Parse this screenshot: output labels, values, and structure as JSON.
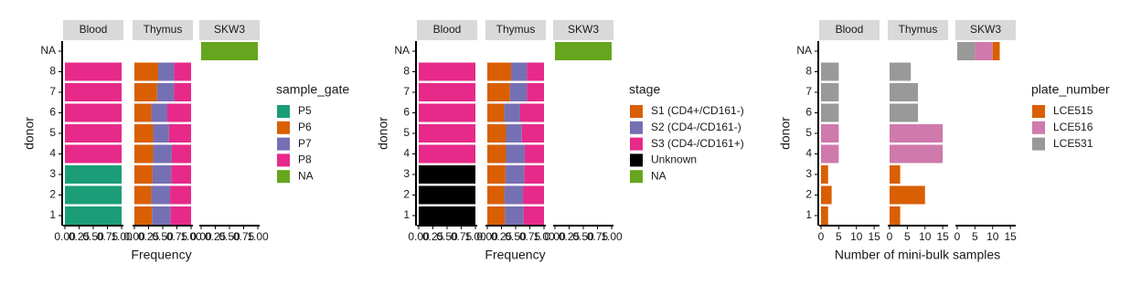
{
  "chart_data": [
    {
      "type": "bar",
      "orientation": "horizontal",
      "stack_order": "forward",
      "facets": [
        "Blood",
        "Thymus",
        "SKW3"
      ],
      "categories": [
        "1",
        "2",
        "3",
        "4",
        "5",
        "6",
        "7",
        "8",
        "NA"
      ],
      "x_label": "Frequency",
      "y_label": "donor",
      "legend_title": "sample_gate",
      "xlim": [
        0,
        1
      ],
      "xticks": [
        {
          "value": 0,
          "label": "0.00"
        },
        {
          "value": 0.25,
          "label": "0.25"
        },
        {
          "value": 0.5,
          "label": "0.50"
        },
        {
          "value": 0.75,
          "label": "0.75"
        },
        {
          "value": 1,
          "label": "1.00"
        }
      ],
      "series": [
        {
          "name": "P5",
          "color": "#1b9e77",
          "values": [
            [
              1,
              1,
              1,
              null,
              null,
              null,
              null,
              null,
              null
            ],
            [
              null,
              null,
              null,
              null,
              null,
              null,
              null,
              null,
              null
            ],
            [
              null,
              null,
              null,
              null,
              null,
              null,
              null,
              null,
              null
            ]
          ]
        },
        {
          "name": "P6",
          "color": "#d95f02",
          "values": [
            [
              null,
              null,
              null,
              null,
              null,
              null,
              null,
              null,
              null
            ],
            [
              0.31,
              0.3,
              0.32,
              0.33,
              0.33,
              0.3,
              0.4,
              0.42,
              null
            ],
            [
              null,
              null,
              null,
              null,
              null,
              null,
              null,
              null,
              null
            ]
          ]
        },
        {
          "name": "P7",
          "color": "#7570b3",
          "values": [
            [
              null,
              null,
              null,
              null,
              null,
              null,
              null,
              null,
              null
            ],
            [
              0.33,
              0.33,
              0.33,
              0.33,
              0.28,
              0.28,
              0.3,
              0.28,
              null
            ],
            [
              null,
              null,
              null,
              null,
              null,
              null,
              null,
              null,
              null
            ]
          ]
        },
        {
          "name": "P8",
          "color": "#e7298a",
          "values": [
            [
              null,
              null,
              null,
              1,
              1,
              1,
              1,
              1,
              null
            ],
            [
              0.36,
              0.37,
              0.35,
              0.34,
              0.39,
              0.42,
              0.3,
              0.3,
              null
            ],
            [
              null,
              null,
              null,
              null,
              null,
              null,
              null,
              null,
              null
            ]
          ]
        },
        {
          "name": "NA",
          "color": "#66a61e",
          "values": [
            [
              null,
              null,
              null,
              null,
              null,
              null,
              null,
              null,
              null
            ],
            [
              null,
              null,
              null,
              null,
              null,
              null,
              null,
              null,
              null
            ],
            [
              null,
              null,
              null,
              null,
              null,
              null,
              null,
              null,
              1
            ]
          ]
        }
      ]
    },
    {
      "type": "bar",
      "orientation": "horizontal",
      "stack_order": "forward",
      "facets": [
        "Blood",
        "Thymus",
        "SKW3"
      ],
      "categories": [
        "1",
        "2",
        "3",
        "4",
        "5",
        "6",
        "7",
        "8",
        "NA"
      ],
      "x_label": "Frequency",
      "y_label": "donor",
      "legend_title": "stage",
      "xlim": [
        0,
        1
      ],
      "xticks": [
        {
          "value": 0,
          "label": "0.00"
        },
        {
          "value": 0.25,
          "label": "0.25"
        },
        {
          "value": 0.5,
          "label": "0.50"
        },
        {
          "value": 0.75,
          "label": "0.75"
        },
        {
          "value": 1,
          "label": "1.00"
        }
      ],
      "series": [
        {
          "name": "S1 (CD4+/CD161-)",
          "color": "#d95f02",
          "values": [
            [
              null,
              null,
              null,
              null,
              null,
              null,
              null,
              null,
              null
            ],
            [
              0.31,
              0.3,
              0.32,
              0.33,
              0.33,
              0.3,
              0.4,
              0.42,
              null
            ],
            [
              null,
              null,
              null,
              null,
              null,
              null,
              null,
              null,
              null
            ]
          ]
        },
        {
          "name": "S2 (CD4-/CD161-)",
          "color": "#7570b3",
          "values": [
            [
              null,
              null,
              null,
              null,
              null,
              null,
              null,
              null,
              null
            ],
            [
              0.33,
              0.33,
              0.33,
              0.33,
              0.28,
              0.28,
              0.3,
              0.28,
              null
            ],
            [
              null,
              null,
              null,
              null,
              null,
              null,
              null,
              null,
              null
            ]
          ]
        },
        {
          "name": "S3 (CD4-/CD161+)",
          "color": "#e7298a",
          "values": [
            [
              null,
              null,
              null,
              1,
              1,
              1,
              1,
              1,
              null
            ],
            [
              0.36,
              0.37,
              0.35,
              0.34,
              0.39,
              0.42,
              0.3,
              0.3,
              null
            ],
            [
              null,
              null,
              null,
              null,
              null,
              null,
              null,
              null,
              null
            ]
          ]
        },
        {
          "name": "Unknown",
          "color": "#000000",
          "values": [
            [
              1,
              1,
              1,
              null,
              null,
              null,
              null,
              null,
              null
            ],
            [
              null,
              null,
              null,
              null,
              null,
              null,
              null,
              null,
              null
            ],
            [
              null,
              null,
              null,
              null,
              null,
              null,
              null,
              null,
              null
            ]
          ]
        },
        {
          "name": "NA",
          "color": "#66a61e",
          "values": [
            [
              null,
              null,
              null,
              null,
              null,
              null,
              null,
              null,
              null
            ],
            [
              null,
              null,
              null,
              null,
              null,
              null,
              null,
              null,
              null
            ],
            [
              null,
              null,
              null,
              null,
              null,
              null,
              null,
              null,
              1
            ]
          ]
        }
      ]
    },
    {
      "type": "bar",
      "orientation": "horizontal",
      "stack_order": "reverse",
      "facets": [
        "Blood",
        "Thymus",
        "SKW3"
      ],
      "categories": [
        "1",
        "2",
        "3",
        "4",
        "5",
        "6",
        "7",
        "8",
        "NA"
      ],
      "x_label": "Number of mini-bulk samples",
      "y_label": "donor",
      "legend_title": "plate_number",
      "xlim": [
        0,
        16
      ],
      "xticks": [
        0,
        5,
        10,
        15
      ],
      "series": [
        {
          "name": "LCE515",
          "color": "#d95f02",
          "values": [
            [
              2,
              3,
              2,
              null,
              null,
              null,
              null,
              null,
              null
            ],
            [
              3,
              10,
              3,
              null,
              null,
              null,
              null,
              null,
              null
            ],
            [
              null,
              null,
              null,
              null,
              null,
              null,
              null,
              null,
              2
            ]
          ]
        },
        {
          "name": "LCE516",
          "color": "#cf79ad",
          "values": [
            [
              null,
              null,
              null,
              5,
              5,
              null,
              null,
              null,
              null
            ],
            [
              null,
              null,
              null,
              15,
              15,
              null,
              null,
              null,
              null
            ],
            [
              null,
              null,
              null,
              null,
              null,
              null,
              null,
              null,
              5
            ]
          ]
        },
        {
          "name": "LCE531",
          "color": "#999999",
          "values": [
            [
              null,
              null,
              null,
              null,
              null,
              5,
              5,
              5,
              null
            ],
            [
              null,
              null,
              null,
              null,
              null,
              8,
              8,
              6,
              null
            ],
            [
              null,
              null,
              null,
              null,
              null,
              null,
              null,
              null,
              5
            ]
          ]
        }
      ]
    }
  ]
}
